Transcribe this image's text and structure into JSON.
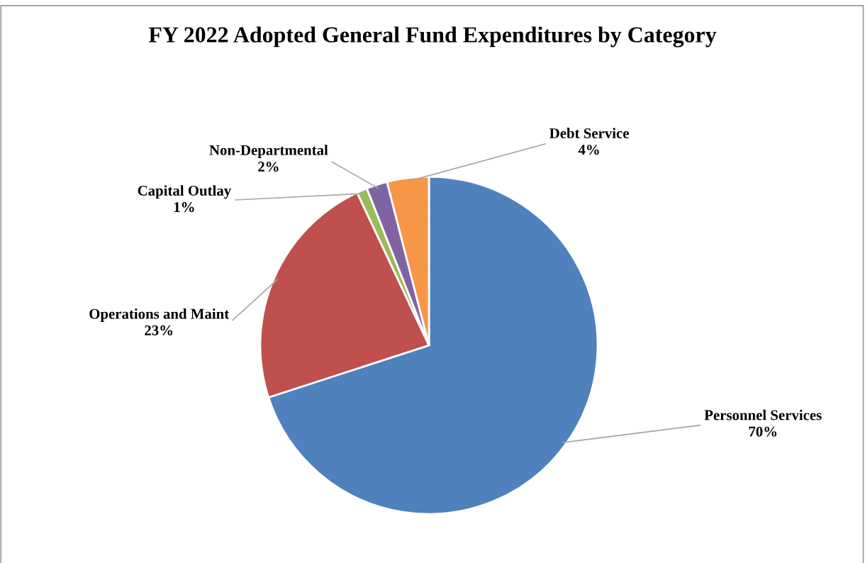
{
  "chart_data": {
    "type": "pie",
    "title": "FY 2022 Adopted General Fund Expenditures by Category",
    "categories": [
      "Personnel Services",
      "Operations and Maint",
      "Capital Outlay",
      "Non-Departmental",
      "Debt Service"
    ],
    "values": [
      70,
      23,
      1,
      2,
      4
    ],
    "value_labels": [
      "70%",
      "23%",
      "1%",
      "2%",
      "4%"
    ],
    "colors": [
      "#4f81bd",
      "#c0504d",
      "#9bbb59",
      "#8064a2",
      "#f79646"
    ],
    "legend": false
  }
}
